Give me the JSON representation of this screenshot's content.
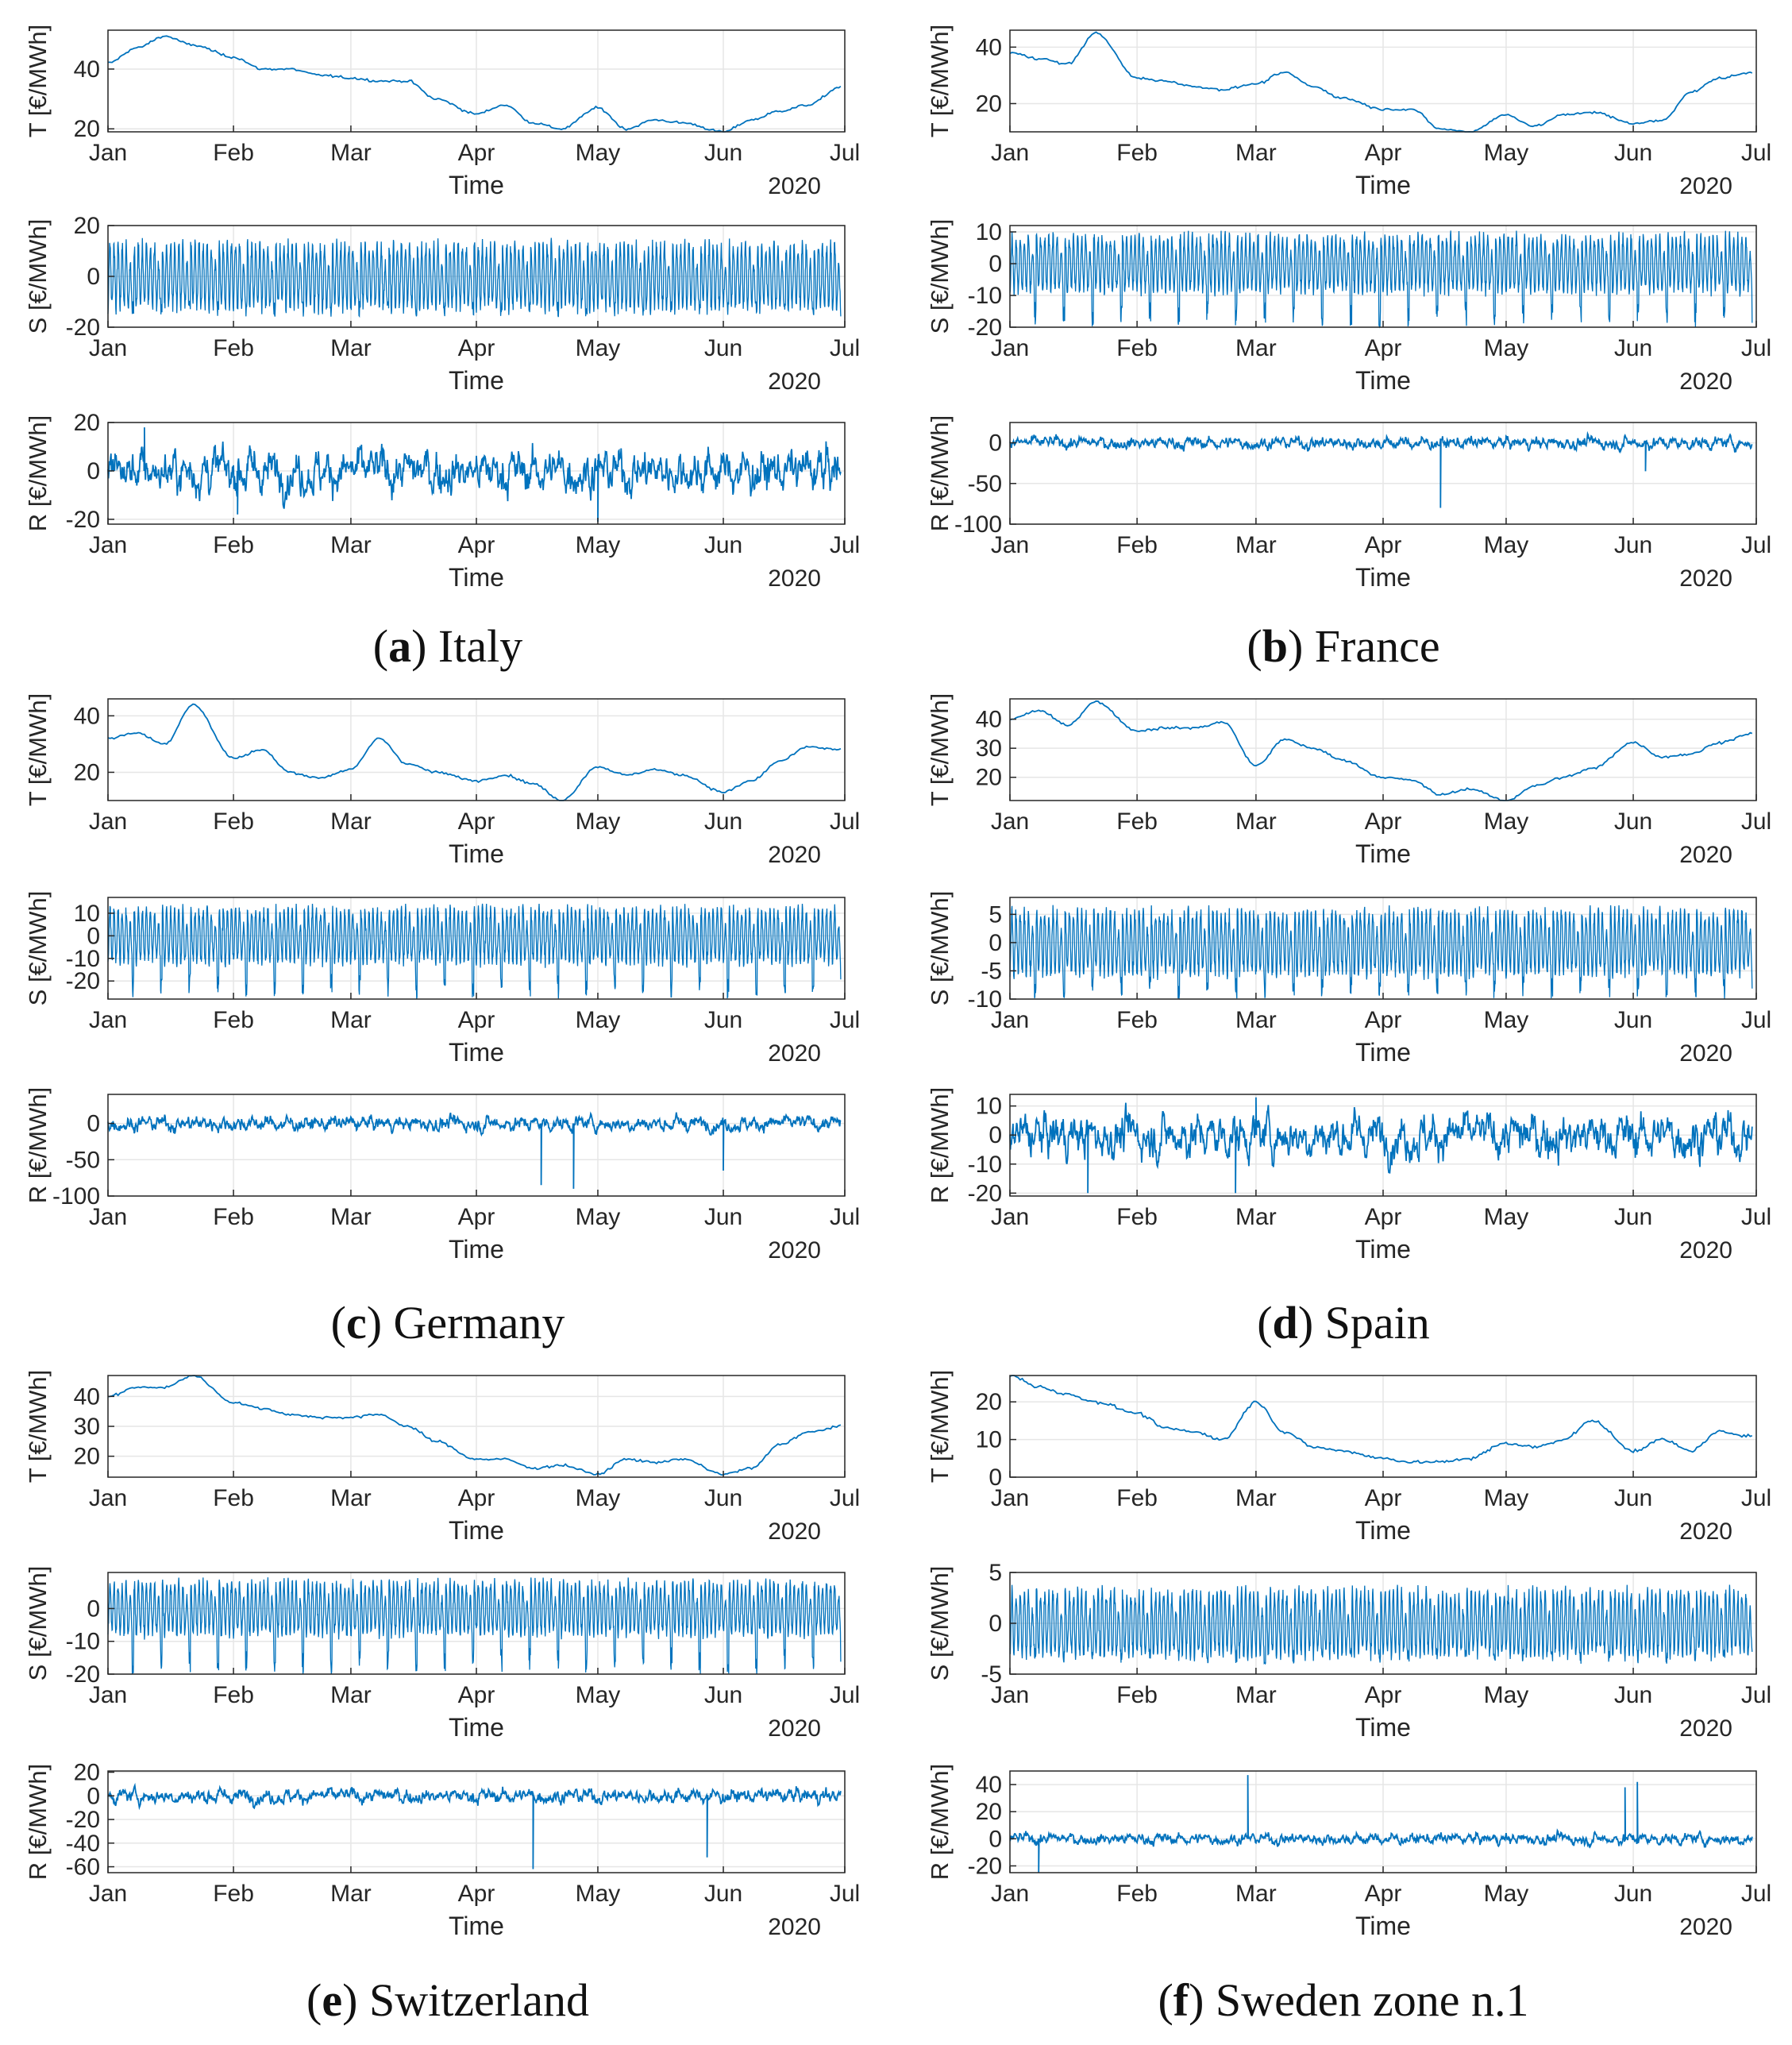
{
  "months": [
    "Jan",
    "Feb",
    "Mar",
    "Apr",
    "May",
    "Jun",
    "Jul"
  ],
  "panels": [
    {
      "letter": "a",
      "country": "Italy",
      "subplots": [
        {
          "ylabel": "T [€/MWh]",
          "yticks": [
            20,
            40
          ],
          "ylim": [
            19,
            53
          ],
          "xlabel": "Time",
          "year": "2020"
        },
        {
          "ylabel": "S [€/MWh]",
          "yticks": [
            -20,
            0,
            20
          ],
          "ylim": [
            -20,
            20
          ],
          "xlabel": "Time",
          "year": "2020"
        },
        {
          "ylabel": "R [€/MWh]",
          "yticks": [
            -20,
            0,
            20
          ],
          "ylim": [
            -22,
            20
          ],
          "xlabel": "Time",
          "year": "2020"
        }
      ]
    },
    {
      "letter": "b",
      "country": "France",
      "subplots": [
        {
          "ylabel": "T [€/MWh]",
          "yticks": [
            20,
            40
          ],
          "ylim": [
            10,
            46
          ],
          "xlabel": "Time",
          "year": "2020"
        },
        {
          "ylabel": "S [€/MWh]",
          "yticks": [
            -20,
            -10,
            0,
            10
          ],
          "ylim": [
            -20,
            12
          ],
          "xlabel": "Time",
          "year": "2020"
        },
        {
          "ylabel": "R [€/MWh]",
          "yticks": [
            -100,
            -50,
            0
          ],
          "ylim": [
            -100,
            25
          ],
          "xlabel": "Time",
          "year": "2020"
        }
      ]
    },
    {
      "letter": "c",
      "country": "Germany",
      "subplots": [
        {
          "ylabel": "T [€/MWh]",
          "yticks": [
            20,
            40
          ],
          "ylim": [
            10,
            46
          ],
          "xlabel": "Time",
          "year": "2020"
        },
        {
          "ylabel": "S [€/MWh]",
          "yticks": [
            -20,
            -10,
            0,
            10
          ],
          "ylim": [
            -28,
            17
          ],
          "xlabel": "Time",
          "year": "2020"
        },
        {
          "ylabel": "R [€/MWh]",
          "yticks": [
            -100,
            -50,
            0
          ],
          "ylim": [
            -100,
            40
          ],
          "xlabel": "Time",
          "year": "2020"
        }
      ]
    },
    {
      "letter": "d",
      "country": "Spain",
      "subplots": [
        {
          "ylabel": "T [€/MWh]",
          "yticks": [
            20,
            30,
            40
          ],
          "ylim": [
            12,
            47
          ],
          "xlabel": "Time",
          "year": "2020"
        },
        {
          "ylabel": "S [€/MWh]",
          "yticks": [
            -10,
            -5,
            0,
            5
          ],
          "ylim": [
            -10,
            8
          ],
          "xlabel": "Time",
          "year": "2020"
        },
        {
          "ylabel": "R [€/MWh]",
          "yticks": [
            -20,
            -10,
            0,
            10
          ],
          "ylim": [
            -21,
            14
          ],
          "xlabel": "Time",
          "year": "2020"
        }
      ]
    },
    {
      "letter": "e",
      "country": "Switzerland",
      "subplots": [
        {
          "ylabel": "T [€/MWh]",
          "yticks": [
            20,
            30,
            40
          ],
          "ylim": [
            13,
            47
          ],
          "xlabel": "Time",
          "year": "2020"
        },
        {
          "ylabel": "S [€/MWh]",
          "yticks": [
            -20,
            -10,
            0
          ],
          "ylim": [
            -20,
            11
          ],
          "xlabel": "Time",
          "year": "2020"
        },
        {
          "ylabel": "R [€/MWh]",
          "yticks": [
            -60,
            -40,
            -20,
            0,
            20
          ],
          "ylim": [
            -65,
            21
          ],
          "xlabel": "Time",
          "year": "2020"
        }
      ]
    },
    {
      "letter": "f",
      "country": "Sweden zone n.1",
      "subplots": [
        {
          "ylabel": "T [€/MWh]",
          "yticks": [
            0,
            10,
            20
          ],
          "ylim": [
            0,
            27
          ],
          "xlabel": "Time",
          "year": "2020"
        },
        {
          "ylabel": "S [€/MWh]",
          "yticks": [
            -5,
            0,
            5
          ],
          "ylim": [
            -5,
            5
          ],
          "xlabel": "Time",
          "year": "2020"
        },
        {
          "ylabel": "R [€/MWh]",
          "yticks": [
            -20,
            0,
            20,
            40
          ],
          "ylim": [
            -25,
            50
          ],
          "xlabel": "Time",
          "year": "2020"
        }
      ]
    }
  ],
  "chart_data": [
    {
      "type": "line",
      "panel": "a",
      "component": "T",
      "x": [
        "Jan 1",
        "Jan 8",
        "Jan 15",
        "Jan 22",
        "Feb 1",
        "Feb 8",
        "Feb 15",
        "Feb 22",
        "Mar 1",
        "Mar 8",
        "Mar 15",
        "Mar 22",
        "Apr 1",
        "Apr 8",
        "Apr 15",
        "Apr 22",
        "May 1",
        "May 8",
        "May 15",
        "May 22",
        "Jun 1",
        "Jun 8",
        "Jun 15",
        "Jun 22",
        "Jun 30"
      ],
      "values": [
        42,
        47,
        51,
        48,
        44,
        40,
        40,
        38,
        37,
        36,
        36,
        30,
        25,
        28,
        22,
        20,
        27,
        20,
        23,
        22,
        19,
        23,
        26,
        28,
        34
      ],
      "ylim": [
        19,
        53
      ]
    },
    {
      "type": "line",
      "panel": "a",
      "component": "S",
      "pattern": "periodic",
      "period_days": 7,
      "amplitude_high": 16,
      "amplitude_low": -16,
      "ylim": [
        -20,
        20
      ]
    },
    {
      "type": "line",
      "panel": "a",
      "component": "R",
      "pattern": "noise",
      "typical_range": [
        -12,
        12
      ],
      "extremes": [
        {
          "x": "Jan 10",
          "value": 18
        },
        {
          "x": "Feb 2",
          "value": -18
        },
        {
          "x": "May 1",
          "value": -21
        }
      ],
      "ylim": [
        -22,
        20
      ]
    },
    {
      "type": "line",
      "panel": "b",
      "component": "T",
      "x": [
        "Jan 1",
        "Jan 8",
        "Jan 15",
        "Jan 22",
        "Feb 1",
        "Feb 8",
        "Feb 15",
        "Feb 22",
        "Mar 1",
        "Mar 8",
        "Mar 15",
        "Mar 22",
        "Apr 1",
        "Apr 8",
        "Apr 15",
        "Apr 22",
        "May 1",
        "May 8",
        "May 15",
        "May 22",
        "Jun 1",
        "Jun 8",
        "Jun 15",
        "Jun 22",
        "Jun 30"
      ],
      "values": [
        38,
        36,
        34,
        45,
        29,
        28,
        26,
        25,
        27,
        31,
        26,
        22,
        18,
        18,
        11,
        10,
        16,
        12,
        16,
        17,
        13,
        14,
        24,
        29,
        31
      ],
      "ylim": [
        10,
        46
      ]
    },
    {
      "type": "line",
      "panel": "b",
      "component": "S",
      "pattern": "periodic",
      "period_days": 7,
      "amplitude_high": 11,
      "amplitude_low": -20,
      "ylim": [
        -20,
        12
      ]
    },
    {
      "type": "line",
      "panel": "b",
      "component": "R",
      "pattern": "noise",
      "typical_range": [
        -10,
        10
      ],
      "extremes": [
        {
          "x": "Apr 15",
          "value": -80
        },
        {
          "x": "Jun 4",
          "value": -35
        }
      ],
      "ylim": [
        -100,
        25
      ]
    },
    {
      "type": "line",
      "panel": "c",
      "component": "T",
      "x": [
        "Jan 1",
        "Jan 8",
        "Jan 15",
        "Jan 22",
        "Feb 1",
        "Feb 8",
        "Feb 15",
        "Feb 22",
        "Mar 1",
        "Mar 8",
        "Mar 15",
        "Mar 22",
        "Apr 1",
        "Apr 8",
        "Apr 15",
        "Apr 22",
        "May 1",
        "May 8",
        "May 15",
        "May 22",
        "Jun 1",
        "Jun 8",
        "Jun 15",
        "Jun 22",
        "Jun 30"
      ],
      "values": [
        32,
        34,
        30,
        44,
        25,
        28,
        20,
        18,
        21,
        32,
        23,
        20,
        17,
        19,
        16,
        10,
        22,
        19,
        21,
        19,
        13,
        17,
        24,
        29,
        28
      ],
      "ylim": [
        10,
        46
      ]
    },
    {
      "type": "line",
      "panel": "c",
      "component": "S",
      "pattern": "periodic",
      "period_days": 7,
      "amplitude_high": 15,
      "amplitude_low": -28,
      "ylim": [
        -28,
        17
      ]
    },
    {
      "type": "line",
      "panel": "c",
      "component": "R",
      "pattern": "noise",
      "typical_range": [
        -12,
        15
      ],
      "extremes": [
        {
          "x": "Apr 17",
          "value": -85
        },
        {
          "x": "Apr 25",
          "value": -90
        },
        {
          "x": "Jun 1",
          "value": -65
        }
      ],
      "ylim": [
        -100,
        40
      ]
    },
    {
      "type": "line",
      "panel": "d",
      "component": "T",
      "x": [
        "Jan 1",
        "Jan 8",
        "Jan 15",
        "Jan 22",
        "Feb 1",
        "Feb 8",
        "Feb 15",
        "Feb 22",
        "Mar 1",
        "Mar 8",
        "Mar 15",
        "Mar 22",
        "Apr 1",
        "Apr 8",
        "Apr 15",
        "Apr 22",
        "May 1",
        "May 8",
        "May 15",
        "May 22",
        "Jun 1",
        "Jun 8",
        "Jun 15",
        "Jun 22",
        "Jun 30"
      ],
      "values": [
        40,
        43,
        38,
        46,
        36,
        37,
        37,
        39,
        24,
        33,
        30,
        26,
        20,
        19,
        14,
        16,
        12,
        17,
        20,
        23,
        32,
        27,
        28,
        32,
        35
      ],
      "ylim": [
        12,
        47
      ]
    },
    {
      "type": "line",
      "panel": "d",
      "component": "S",
      "pattern": "periodic",
      "period_days": 7,
      "amplitude_high": 7,
      "amplitude_low": -10,
      "ylim": [
        -10,
        8
      ]
    },
    {
      "type": "line",
      "panel": "d",
      "component": "R",
      "pattern": "noise",
      "typical_range": [
        -10,
        10
      ],
      "extremes": [
        {
          "x": "Jan 20",
          "value": -20
        },
        {
          "x": "Feb 25",
          "value": -20
        },
        {
          "x": "Mar 1",
          "value": 13
        }
      ],
      "ylim": [
        -21,
        14
      ]
    },
    {
      "type": "line",
      "panel": "e",
      "component": "T",
      "x": [
        "Jan 1",
        "Jan 8",
        "Jan 15",
        "Jan 22",
        "Feb 1",
        "Feb 8",
        "Feb 15",
        "Feb 22",
        "Mar 1",
        "Mar 8",
        "Mar 15",
        "Mar 22",
        "Apr 1",
        "Apr 8",
        "Apr 15",
        "Apr 22",
        "May 1",
        "May 8",
        "May 15",
        "May 22",
        "Jun 1",
        "Jun 8",
        "Jun 15",
        "Jun 22",
        "Jun 30"
      ],
      "values": [
        40,
        43,
        43,
        47,
        38,
        36,
        34,
        33,
        33,
        34,
        30,
        25,
        19,
        19,
        16,
        17,
        14,
        19,
        18,
        19,
        14,
        16,
        24,
        28,
        30
      ],
      "ylim": [
        13,
        47
      ]
    },
    {
      "type": "line",
      "panel": "e",
      "component": "S",
      "pattern": "periodic",
      "period_days": 7,
      "amplitude_high": 10,
      "amplitude_low": -20,
      "ylim": [
        -20,
        11
      ]
    },
    {
      "type": "line",
      "panel": "e",
      "component": "R",
      "pattern": "noise",
      "typical_range": [
        -8,
        8
      ],
      "extremes": [
        {
          "x": "Apr 15",
          "value": -62
        },
        {
          "x": "May 28",
          "value": -52
        }
      ],
      "ylim": [
        -65,
        21
      ]
    },
    {
      "type": "line",
      "panel": "f",
      "component": "T",
      "x": [
        "Jan 1",
        "Jan 8",
        "Jan 15",
        "Jan 22",
        "Feb 1",
        "Feb 8",
        "Feb 15",
        "Feb 22",
        "Mar 1",
        "Mar 8",
        "Mar 15",
        "Mar 22",
        "Apr 1",
        "Apr 8",
        "Apr 15",
        "Apr 22",
        "May 1",
        "May 8",
        "May 15",
        "May 22",
        "Jun 1",
        "Jun 8",
        "Jun 15",
        "Jun 22",
        "Jun 30"
      ],
      "values": [
        27,
        24,
        22,
        20,
        17,
        13,
        12,
        10,
        20,
        12,
        8,
        7,
        5,
        4,
        4,
        5,
        9,
        8,
        10,
        15,
        7,
        10,
        7,
        12,
        11
      ],
      "ylim": [
        0,
        27
      ]
    },
    {
      "type": "line",
      "panel": "f",
      "component": "S",
      "pattern": "periodic",
      "period_days": 7,
      "amplitude_high": 4,
      "amplitude_low": -4,
      "ylim": [
        -5,
        5
      ]
    },
    {
      "type": "line",
      "panel": "f",
      "component": "R",
      "pattern": "noise",
      "typical_range": [
        -5,
        6
      ],
      "extremes": [
        {
          "x": "Jan 8",
          "value": -25
        },
        {
          "x": "Feb 28",
          "value": 47
        },
        {
          "x": "May 30",
          "value": 38
        },
        {
          "x": "Jun 2",
          "value": 42
        }
      ],
      "ylim": [
        -25,
        50
      ]
    }
  ]
}
